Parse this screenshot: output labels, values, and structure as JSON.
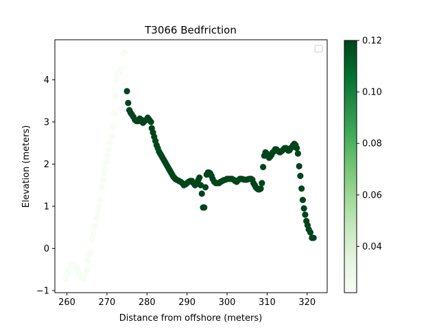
{
  "chart_data": {
    "type": "scatter",
    "title": "T3066 Bedfriction",
    "xlabel": "Distance from offshore (meters)",
    "ylabel": "Elevation (meters)",
    "xlim": [
      257,
      325
    ],
    "ylim": [
      -1.05,
      4.95
    ],
    "xticks": [
      260,
      270,
      280,
      290,
      300,
      310,
      320
    ],
    "yticks": [
      -1,
      0,
      1,
      2,
      3,
      4
    ],
    "grid": false,
    "legend": {
      "position": "top-right",
      "entries": []
    },
    "colormap": {
      "name": "Greens",
      "low": "#f7fcf5",
      "high": "#00441b"
    },
    "colorbar": {
      "range": [
        0.022,
        0.12
      ],
      "ticks": [
        "0.04",
        "0.06",
        "0.08",
        "0.10",
        "0.12"
      ],
      "tick_values": [
        0.04,
        0.06,
        0.08,
        0.1,
        0.12
      ]
    },
    "series": [
      {
        "color_value": 0.022,
        "points": [
          [
            259.7,
            -0.72
          ],
          [
            260.0,
            -0.62
          ],
          [
            260.3,
            -0.55
          ],
          [
            260.6,
            -0.48
          ],
          [
            261.0,
            -0.42
          ],
          [
            261.4,
            -0.38
          ],
          [
            261.8,
            -0.38
          ],
          [
            262.2,
            -0.42
          ],
          [
            262.6,
            -0.5
          ],
          [
            263.0,
            -0.58
          ],
          [
            263.4,
            -0.66
          ],
          [
            263.8,
            -0.7
          ],
          [
            264.2,
            -0.72
          ],
          [
            264.6,
            -0.62
          ],
          [
            265.0,
            -0.5
          ],
          [
            265.3,
            -0.3
          ],
          [
            265.6,
            -0.15
          ],
          [
            265.9,
            -0.08
          ],
          [
            266.3,
            0.22
          ],
          [
            266.7,
            0.35
          ],
          [
            267.0,
            0.52
          ],
          [
            267.4,
            0.72
          ],
          [
            267.8,
            0.88
          ],
          [
            268.0,
            1.0
          ],
          [
            268.3,
            1.15
          ],
          [
            268.6,
            1.45
          ],
          [
            269.0,
            1.62
          ],
          [
            269.3,
            1.78
          ],
          [
            269.6,
            1.9
          ],
          [
            269.9,
            2.05
          ],
          [
            270.2,
            2.2
          ],
          [
            270.5,
            2.35
          ],
          [
            270.8,
            2.5
          ],
          [
            271.1,
            2.65
          ],
          [
            271.5,
            2.88
          ],
          [
            271.8,
            3.2
          ],
          [
            272.1,
            3.62
          ],
          [
            272.4,
            4.02
          ],
          [
            272.8,
            4.15
          ],
          [
            273.2,
            4.2
          ],
          [
            273.7,
            4.28
          ],
          [
            274.1,
            4.62
          ],
          [
            274.4,
            4.65
          ]
        ]
      },
      {
        "color_value": 0.12,
        "points": [
          [
            275.0,
            3.73
          ],
          [
            275.3,
            3.45
          ],
          [
            275.6,
            3.28
          ],
          [
            275.9,
            3.22
          ],
          [
            276.2,
            3.18
          ],
          [
            276.6,
            3.12
          ],
          [
            277.0,
            3.05
          ],
          [
            277.4,
            3.02
          ],
          [
            277.8,
            3.02
          ],
          [
            278.2,
            3.08
          ],
          [
            278.6,
            3.05
          ],
          [
            279.0,
            2.98
          ],
          [
            279.4,
            3.02
          ],
          [
            279.8,
            3.05
          ],
          [
            280.2,
            3.1
          ],
          [
            280.6,
            3.05
          ],
          [
            281.0,
            3.0
          ],
          [
            281.2,
            2.85
          ],
          [
            281.5,
            2.75
          ],
          [
            281.8,
            2.65
          ],
          [
            282.1,
            2.55
          ],
          [
            282.4,
            2.45
          ],
          [
            282.7,
            2.38
          ],
          [
            283.0,
            2.3
          ],
          [
            283.3,
            2.25
          ],
          [
            283.6,
            2.2
          ],
          [
            283.9,
            2.15
          ],
          [
            284.2,
            2.1
          ],
          [
            284.5,
            2.05
          ],
          [
            284.8,
            2.0
          ],
          [
            285.1,
            1.95
          ],
          [
            285.4,
            1.9
          ],
          [
            285.7,
            1.85
          ],
          [
            286.0,
            1.8
          ],
          [
            286.3,
            1.75
          ],
          [
            286.6,
            1.7
          ],
          [
            286.9,
            1.67
          ],
          [
            287.2,
            1.64
          ],
          [
            287.6,
            1.62
          ],
          [
            288.0,
            1.6
          ],
          [
            288.4,
            1.58
          ],
          [
            288.8,
            1.55
          ],
          [
            289.2,
            1.5
          ],
          [
            289.6,
            1.52
          ],
          [
            290.0,
            1.55
          ],
          [
            290.4,
            1.58
          ],
          [
            290.8,
            1.6
          ],
          [
            291.2,
            1.6
          ],
          [
            291.6,
            1.55
          ],
          [
            292.0,
            1.5
          ],
          [
            292.4,
            1.55
          ],
          [
            292.8,
            1.62
          ],
          [
            293.1,
            1.68
          ],
          [
            293.4,
            1.5
          ],
          [
            293.7,
            1.3
          ],
          [
            294.0,
            0.97
          ],
          [
            294.3,
            0.97
          ],
          [
            294.6,
            1.45
          ],
          [
            294.9,
            1.75
          ],
          [
            295.2,
            1.8
          ],
          [
            295.5,
            1.8
          ],
          [
            295.8,
            1.78
          ],
          [
            296.1,
            1.72
          ],
          [
            296.4,
            1.65
          ],
          [
            296.8,
            1.58
          ],
          [
            297.2,
            1.55
          ],
          [
            297.6,
            1.55
          ],
          [
            298.0,
            1.55
          ],
          [
            298.4,
            1.58
          ],
          [
            298.8,
            1.6
          ],
          [
            299.2,
            1.62
          ],
          [
            299.6,
            1.63
          ],
          [
            300.0,
            1.65
          ],
          [
            300.4,
            1.65
          ],
          [
            300.8,
            1.65
          ],
          [
            301.2,
            1.65
          ],
          [
            301.6,
            1.63
          ],
          [
            302.0,
            1.6
          ],
          [
            302.4,
            1.58
          ],
          [
            302.8,
            1.62
          ],
          [
            303.2,
            1.65
          ],
          [
            303.6,
            1.65
          ],
          [
            304.0,
            1.64
          ],
          [
            304.4,
            1.63
          ],
          [
            304.8,
            1.63
          ],
          [
            305.2,
            1.64
          ],
          [
            305.6,
            1.65
          ],
          [
            306.0,
            1.65
          ],
          [
            306.3,
            1.63
          ],
          [
            306.6,
            1.55
          ],
          [
            306.9,
            1.5
          ],
          [
            307.2,
            1.45
          ],
          [
            307.5,
            1.42
          ],
          [
            307.8,
            1.4
          ],
          [
            308.1,
            1.4
          ],
          [
            308.4,
            1.42
          ],
          [
            308.7,
            1.55
          ],
          [
            309.0,
            1.93
          ],
          [
            309.3,
            2.2
          ],
          [
            309.6,
            2.28
          ],
          [
            309.9,
            2.25
          ],
          [
            310.2,
            2.2
          ],
          [
            310.5,
            2.15
          ],
          [
            310.8,
            2.18
          ],
          [
            311.1,
            2.22
          ],
          [
            311.4,
            2.28
          ],
          [
            311.7,
            2.3
          ],
          [
            312.0,
            2.35
          ],
          [
            312.3,
            2.35
          ],
          [
            312.6,
            2.32
          ],
          [
            312.9,
            2.3
          ],
          [
            313.2,
            2.28
          ],
          [
            313.5,
            2.3
          ],
          [
            313.8,
            2.32
          ],
          [
            314.1,
            2.35
          ],
          [
            314.4,
            2.38
          ],
          [
            314.7,
            2.38
          ],
          [
            315.0,
            2.35
          ],
          [
            315.3,
            2.32
          ],
          [
            315.6,
            2.33
          ],
          [
            315.9,
            2.38
          ],
          [
            316.2,
            2.4
          ],
          [
            316.5,
            2.45
          ],
          [
            316.8,
            2.48
          ],
          [
            317.1,
            2.45
          ],
          [
            317.4,
            2.38
          ],
          [
            317.7,
            2.25
          ],
          [
            318.0,
            1.95
          ],
          [
            318.3,
            1.72
          ],
          [
            318.6,
            1.42
          ],
          [
            318.9,
            1.15
          ],
          [
            319.2,
            0.95
          ],
          [
            319.5,
            0.8
          ],
          [
            319.8,
            0.65
          ],
          [
            320.1,
            0.55
          ],
          [
            320.4,
            0.45
          ],
          [
            320.8,
            0.38
          ],
          [
            321.2,
            0.25
          ],
          [
            321.6,
            0.25
          ]
        ]
      }
    ]
  }
}
